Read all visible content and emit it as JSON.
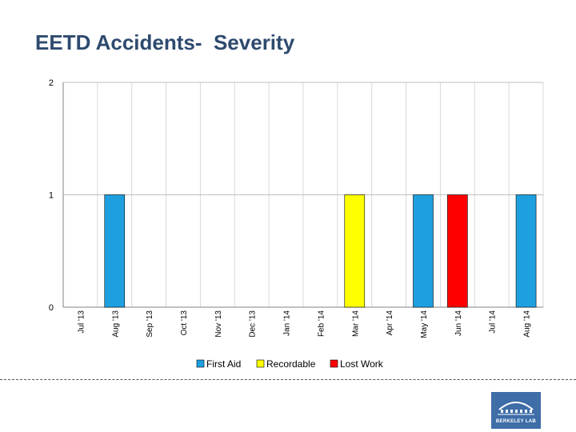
{
  "page": {
    "title": "EETD Accidents-  Severity"
  },
  "logo": {
    "text": "BERKELEY LAB"
  },
  "chart_data": {
    "type": "bar",
    "title": "EETD Accidents-  Severity",
    "categories": [
      "Jul '13",
      "Aug '13",
      "Sep '13",
      "Oct '13",
      "Nov '13",
      "Dec '13",
      "Jan '14",
      "Feb '14",
      "Mar '14",
      "Apr '14",
      "May '14",
      "Jun '14",
      "Jul '14",
      "Aug '14"
    ],
    "series": [
      {
        "name": "First Aid",
        "color": "#1ea0e0",
        "values": [
          0,
          1,
          0,
          0,
          0,
          0,
          0,
          0,
          0,
          0,
          1,
          0,
          0,
          1
        ]
      },
      {
        "name": "Recordable",
        "color": "#ffff00",
        "values": [
          0,
          0,
          0,
          0,
          0,
          0,
          0,
          0,
          1,
          0,
          0,
          0,
          0,
          0
        ]
      },
      {
        "name": "Lost Work",
        "color": "#ff0000",
        "values": [
          0,
          0,
          0,
          0,
          0,
          0,
          0,
          0,
          0,
          0,
          0,
          1,
          0,
          0
        ]
      }
    ],
    "yticks": [
      0,
      1,
      2
    ],
    "ylim": [
      0,
      2
    ],
    "grid": true,
    "legend": "bottom",
    "xlabel": "",
    "ylabel": ""
  }
}
